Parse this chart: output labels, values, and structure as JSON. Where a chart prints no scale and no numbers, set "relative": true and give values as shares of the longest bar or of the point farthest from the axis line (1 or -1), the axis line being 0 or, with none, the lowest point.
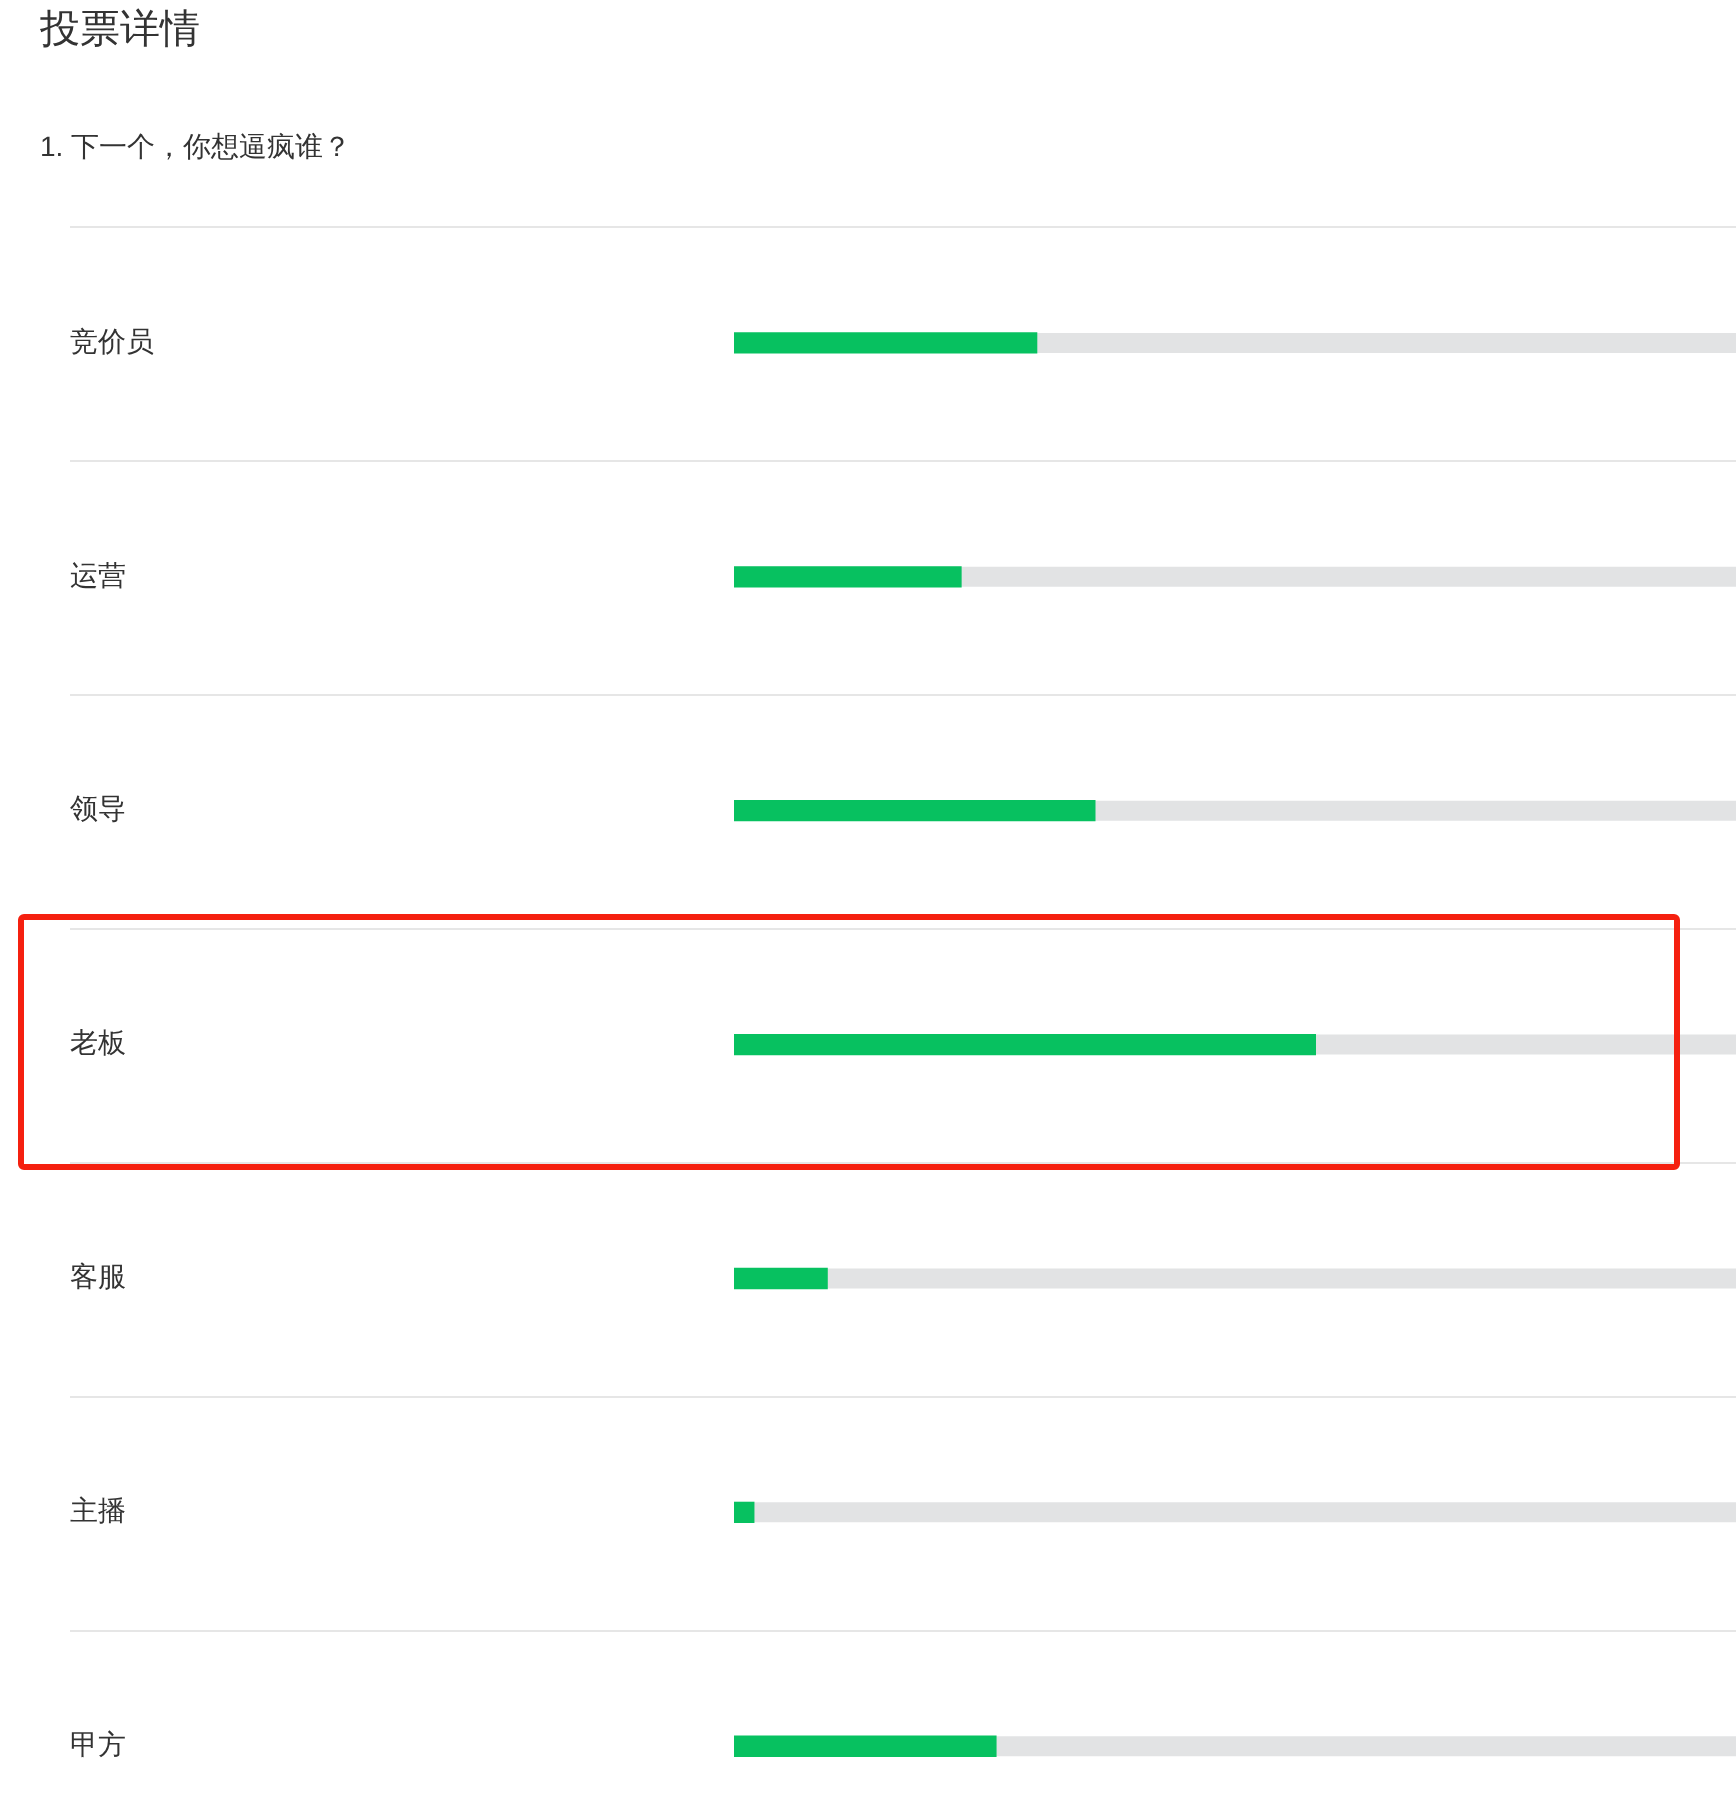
{
  "chart_data": {
    "type": "bar",
    "orientation": "horizontal",
    "relative": true,
    "title": "投票详情",
    "subtitle": "1. 下一个，你想逼疯谁？",
    "categories": [
      "竞价员",
      "运营",
      "领导",
      "老板",
      "客服",
      "主播",
      "甲方"
    ],
    "values": [
      0.52,
      0.39,
      0.62,
      1,
      0.16,
      0.034,
      0.45
    ],
    "color": "#07c160",
    "grid": "y"
  }
}
